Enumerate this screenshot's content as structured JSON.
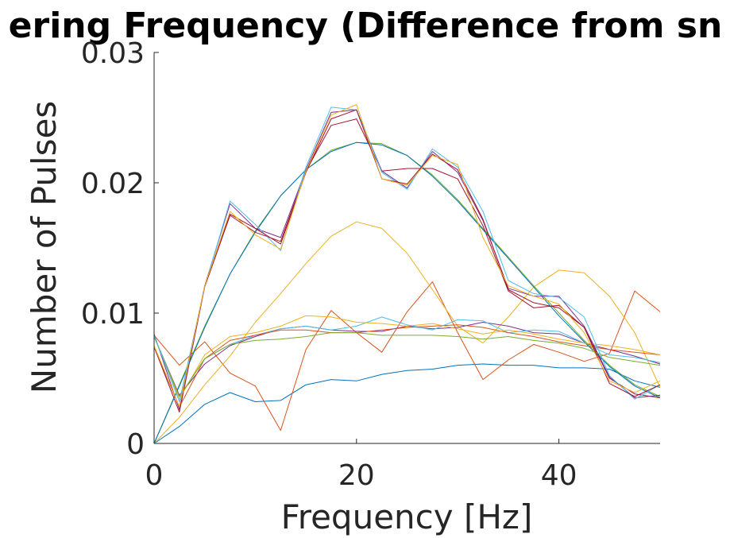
{
  "chart_data": {
    "type": "line",
    "title": "ering Frequency (Difference from sn",
    "xlabel": "Frequency [Hz]",
    "ylabel": "Number of Pulses",
    "xlim": [
      0,
      50
    ],
    "ylim": [
      0,
      0.03
    ],
    "xticks": [
      0,
      20,
      40
    ],
    "xtick_labels": [
      "0",
      "20",
      "40"
    ],
    "yticks": [
      0,
      0.01,
      0.02,
      0.03
    ],
    "ytick_labels": [
      "0",
      "0.01",
      "0.02",
      "0.03"
    ],
    "grid": false,
    "x": [
      0,
      2.5,
      5,
      7.5,
      10,
      12.5,
      15,
      17.5,
      20,
      22.5,
      25,
      27.5,
      30,
      32.5,
      35,
      37.5,
      40,
      42.5,
      45,
      47.5,
      50
    ],
    "series": [
      {
        "color": "#0072BD",
        "values": [
          0,
          0.0013,
          0.003,
          0.0039,
          0.0032,
          0.0033,
          0.0045,
          0.0049,
          0.0048,
          0.0053,
          0.0056,
          0.0057,
          0.006,
          0.0061,
          0.006,
          0.006,
          0.0058,
          0.0058,
          0.0057,
          0.0048,
          0.0043
        ]
      },
      {
        "color": "#D95319",
        "values": [
          0.0083,
          0.006,
          0.0078,
          0.0054,
          0.0044,
          0.001,
          0.0072,
          0.0102,
          0.0085,
          0.007,
          0.0101,
          0.0124,
          0.0085,
          0.0049,
          0.0064,
          0.0076,
          0.007,
          0.0063,
          0.0069,
          0.0117,
          0.0101
        ]
      },
      {
        "color": "#EDB120",
        "values": [
          0,
          0.002,
          0.0045,
          0.0067,
          0.0093,
          0.0115,
          0.0138,
          0.0159,
          0.017,
          0.0165,
          0.0146,
          0.0118,
          0.009,
          0.0077,
          0.0097,
          0.012,
          0.0133,
          0.0131,
          0.0113,
          0.0085,
          0.0043
        ]
      },
      {
        "color": "#7E2F8E",
        "values": [
          0.0082,
          0.0037,
          0.0061,
          0.0075,
          0.0082,
          0.0088,
          0.009,
          0.0087,
          0.0086,
          0.0086,
          0.009,
          0.0088,
          0.0089,
          0.0093,
          0.009,
          0.0085,
          0.0084,
          0.0077,
          0.0072,
          0.0067,
          0.0061
        ]
      },
      {
        "color": "#77AC30",
        "values": [
          0,
          0.0045,
          0.009,
          0.013,
          0.0163,
          0.019,
          0.021,
          0.0225,
          0.0231,
          0.023,
          0.0221,
          0.0206,
          0.0187,
          0.0165,
          0.0143,
          0.0121,
          0.01,
          0.0079,
          0.006,
          0.0045,
          0.0036
        ]
      },
      {
        "color": "#4DBEEE",
        "values": [
          0.0082,
          0.0036,
          0.0065,
          0.0076,
          0.0083,
          0.0088,
          0.009,
          0.0087,
          0.009,
          0.0097,
          0.0091,
          0.0087,
          0.0095,
          0.0094,
          0.0085,
          0.0087,
          0.0086,
          0.0077,
          0.0068,
          0.0066,
          0.0062
        ]
      },
      {
        "color": "#A2142F",
        "values": [
          0.0074,
          0.0024,
          0.012,
          0.0175,
          0.0162,
          0.0155,
          0.0209,
          0.0244,
          0.0249,
          0.0209,
          0.0211,
          0.0211,
          0.0203,
          0.0167,
          0.0117,
          0.0104,
          0.0106,
          0.0089,
          0.005,
          0.0038,
          0.0035
        ]
      },
      {
        "color": "#0072BD",
        "values": [
          0,
          0.0044,
          0.0089,
          0.013,
          0.0162,
          0.019,
          0.021,
          0.0224,
          0.0231,
          0.0229,
          0.0221,
          0.0205,
          0.0186,
          0.0164,
          0.0142,
          0.012,
          0.0098,
          0.0078,
          0.0059,
          0.0044,
          0.0035
        ]
      },
      {
        "color": "#D95319",
        "values": [
          0.0074,
          0.0028,
          0.0065,
          0.0079,
          0.0083,
          0.0087,
          0.0087,
          0.0085,
          0.0085,
          0.0087,
          0.0089,
          0.009,
          0.0091,
          0.0089,
          0.0085,
          0.0082,
          0.0078,
          0.0075,
          0.0072,
          0.007,
          0.0068
        ]
      },
      {
        "color": "#EDB120",
        "values": [
          0.0082,
          0.0034,
          0.0068,
          0.0082,
          0.0085,
          0.009,
          0.0098,
          0.0097,
          0.0093,
          0.0092,
          0.009,
          0.0092,
          0.0088,
          0.0084,
          0.0087,
          0.0084,
          0.008,
          0.0077,
          0.0075,
          0.0072,
          0.0068
        ]
      },
      {
        "color": "#7E2F8E",
        "values": [
          0.0084,
          0.0026,
          0.0121,
          0.0184,
          0.0165,
          0.0158,
          0.021,
          0.0254,
          0.0256,
          0.0209,
          0.0196,
          0.0224,
          0.0208,
          0.0171,
          0.0119,
          0.0113,
          0.0113,
          0.009,
          0.0051,
          0.0035,
          0.0037
        ]
      },
      {
        "color": "#77AC30",
        "values": [
          0.0082,
          0.0036,
          0.0065,
          0.0076,
          0.0079,
          0.008,
          0.0082,
          0.0085,
          0.0085,
          0.0083,
          0.0083,
          0.0083,
          0.0082,
          0.008,
          0.0082,
          0.0079,
          0.0077,
          0.0073,
          0.0066,
          0.0063,
          0.006
        ]
      },
      {
        "color": "#4DBEEE",
        "values": [
          0.0083,
          0.0032,
          0.012,
          0.0186,
          0.0168,
          0.0148,
          0.0212,
          0.0258,
          0.0256,
          0.0208,
          0.0195,
          0.0226,
          0.0212,
          0.0178,
          0.0125,
          0.0115,
          0.0112,
          0.0097,
          0.0052,
          0.0034,
          0.0045
        ]
      },
      {
        "color": "#A2142F",
        "values": [
          0.0074,
          0.0028,
          0.0121,
          0.0176,
          0.0165,
          0.0153,
          0.0208,
          0.0249,
          0.0256,
          0.0203,
          0.0199,
          0.0222,
          0.021,
          0.0172,
          0.0118,
          0.0108,
          0.0104,
          0.0089,
          0.0046,
          0.0036,
          0.0045
        ]
      },
      {
        "color": "#EDB120",
        "values": [
          0.0075,
          0.0028,
          0.0121,
          0.0178,
          0.016,
          0.0149,
          0.0209,
          0.0252,
          0.026,
          0.0203,
          0.0198,
          0.0221,
          0.0214,
          0.0158,
          0.0121,
          0.0113,
          0.0107,
          0.0085,
          0.0048,
          0.0039,
          0.0048
        ]
      }
    ]
  }
}
